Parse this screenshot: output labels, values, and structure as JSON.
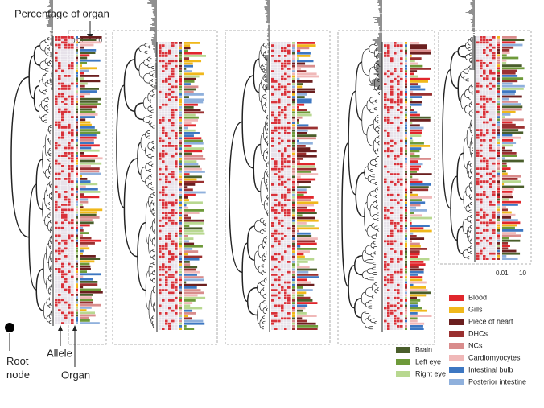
{
  "annotations": {
    "title": "Percentage of organ",
    "root": "Root\nnode",
    "allele": "Allele",
    "organ": "Organ"
  },
  "axis": {
    "ticks": [
      "0.01",
      "10"
    ]
  },
  "legend": {
    "right": [
      {
        "label": "Blood",
        "color": "#e0262c"
      },
      {
        "label": "Gills",
        "color": "#f0b81b"
      },
      {
        "label": "Piece of heart",
        "color": "#6b1f1f"
      },
      {
        "label": "DHCs",
        "color": "#9a3030"
      },
      {
        "label": "NCs",
        "color": "#d98c8c"
      },
      {
        "label": "Cardiomyocytes",
        "color": "#f0b8b8"
      },
      {
        "label": "Intestinal bulb",
        "color": "#3d77c2"
      },
      {
        "label": "Posterior intestine",
        "color": "#8fb0dc"
      }
    ],
    "left": [
      {
        "label": "Brain",
        "color": "#4a5e2b"
      },
      {
        "label": "Left eye",
        "color": "#6e9a3a"
      },
      {
        "label": "Right eye",
        "color": "#b8d890"
      }
    ]
  }
}
